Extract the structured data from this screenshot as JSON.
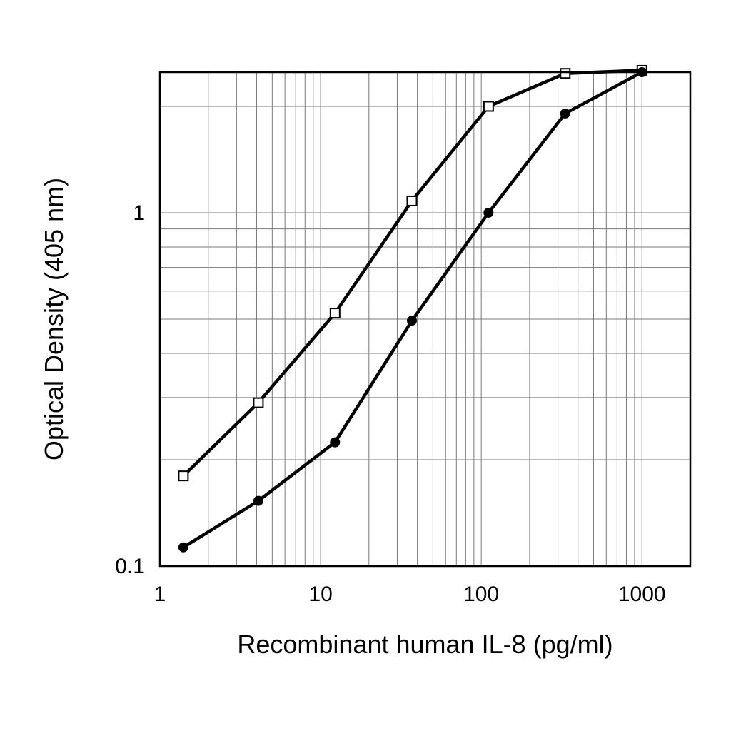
{
  "chart_data": {
    "type": "line",
    "xscale": "log",
    "yscale": "log",
    "xlabel": "Recombinant human IL-8 (pg/ml)",
    "ylabel": "Optical Density (405 nm)",
    "xlim": [
      1,
      2000
    ],
    "ylim": [
      0.1,
      2.5
    ],
    "x_ticks": [
      {
        "value": 1,
        "label": "1"
      },
      {
        "value": 10,
        "label": "10"
      },
      {
        "value": 100,
        "label": "100"
      },
      {
        "value": 1000,
        "label": "1000"
      }
    ],
    "y_ticks": [
      {
        "value": 0.1,
        "label": "0.1"
      },
      {
        "value": 1,
        "label": "1"
      }
    ],
    "grid": true,
    "legend": "none",
    "series": [
      {
        "marker": "open-square",
        "color": "#000000",
        "x": [
          1.4,
          4.1,
          12.3,
          37,
          111,
          333,
          1000
        ],
        "y": [
          0.18,
          0.29,
          0.52,
          1.08,
          2.0,
          2.48,
          2.53
        ]
      },
      {
        "marker": "filled-circle",
        "color": "#000000",
        "x": [
          1.4,
          4.1,
          12.3,
          37,
          111,
          333,
          1000
        ],
        "y": [
          0.113,
          0.153,
          0.224,
          0.495,
          1.0,
          1.91,
          2.5
        ]
      }
    ]
  }
}
